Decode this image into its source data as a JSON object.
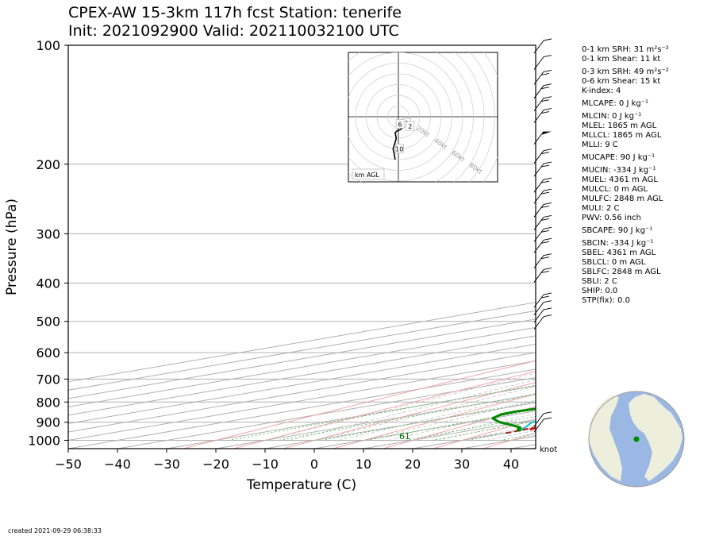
{
  "header": {
    "line1": "CPEX-AW 15-3km  117h fcst  Station: tenerife",
    "line2": "Init: 2021092900  Valid: 202110032100 UTC"
  },
  "stats": [
    "0-1 km SRH: 31 m²s⁻²",
    "0-1 km Shear: 11 kt",
    "0-3 km SRH: 49 m²s⁻²",
    "0-6 km Shear: 15 kt",
    "K-index: 4",
    "MLCAPE: 0 J kg⁻¹",
    "MLCIN: 0 J kg⁻¹",
    "MLEL: 1865 m AGL",
    "MLLCL: 1865 m AGL",
    "MLLI: 9 C",
    "MUCAPE: 90 J kg⁻¹",
    "MUCIN: -334 J kg⁻¹",
    "MUEL: 4361 m AGL",
    "MULCL: 0 m AGL",
    "MULFC: 2848 m AGL",
    "MULI: 2 C",
    "PWV: 0.56 inch",
    "SBCAPE: 90 J kg⁻¹",
    "SBCIN: -334 J kg⁻¹",
    "SBEL: 4361 m AGL",
    "SBLCL: 0 m AGL",
    "SBLFC: 2848 m AGL",
    "SBLI: 2 C",
    "SHIP: 0.0",
    "STP(fix): 0.0"
  ],
  "footer": "created 2021-09-29 06:38:33",
  "colors": {
    "temperature": "#ee1111",
    "dewpoint": "#008800",
    "wetbulb": "#17becf",
    "parcel": "#a52a2a",
    "isotherm": "#b0b0b0",
    "dry_adiabat": "#f4a6a6",
    "moist_adiabat": "#c0c0c0",
    "mixing_ratio": "#66bb66",
    "ocean": "#9ab8e3",
    "land": "#eeeedc"
  },
  "chart_data": {
    "type": "line",
    "chart_kind": "skew-T log-p diagram",
    "xlabel": "Temperature (C)",
    "ylabel": "Pressure (hPa)",
    "xlim": [
      -50,
      45
    ],
    "ylim": [
      1050,
      100
    ],
    "y_scale": "log",
    "xticks": [
      -50,
      -40,
      -30,
      -20,
      -10,
      0,
      10,
      20,
      30,
      40
    ],
    "yticks": [
      100,
      200,
      300,
      400,
      500,
      600,
      700,
      800,
      900,
      1000
    ],
    "surface_label": "61",
    "wind_unit_label": "knot",
    "series": [
      {
        "key": "temperature",
        "pressure": [
          938,
          928,
          900,
          880,
          860,
          840,
          820,
          800,
          780,
          760,
          740,
          720,
          700,
          680,
          660,
          640,
          620,
          600,
          580,
          560,
          540,
          520,
          500,
          480,
          460,
          440,
          420,
          400,
          380,
          360,
          340,
          320,
          300,
          280,
          260,
          240,
          220,
          200,
          180,
          160,
          140,
          120,
          100
        ],
        "values": [
          20.7,
          20.3,
          21.5,
          22.6,
          23.0,
          22.5,
          21.6,
          20.2,
          18.4,
          16.5,
          14.6,
          12.8,
          11.1,
          9.4,
          7.8,
          6.5,
          5.5,
          5.0,
          5.2,
          4.8,
          4.8,
          5.0,
          4.2,
          2.4,
          0.6,
          -1.4,
          -3.4,
          -5.6,
          -7.9,
          -10.5,
          -13.0,
          -16.0,
          -19.5,
          -23.0,
          -26.5,
          -30.5,
          -34.5,
          -39.0,
          -44.0,
          -49.0,
          -54.5,
          -60.0,
          -67.0
        ]
      },
      {
        "key": "wetbulb",
        "pressure": [
          938,
          928,
          900,
          880,
          860,
          840,
          820,
          800,
          780,
          760,
          740,
          720,
          700,
          680,
          660,
          640,
          620,
          600,
          580,
          560,
          540,
          520,
          500,
          480,
          460,
          440,
          420,
          400,
          380,
          360,
          340,
          320,
          300,
          280,
          260,
          240,
          220,
          200,
          180,
          160,
          140,
          120,
          100
        ],
        "values": [
          19.0,
          17.5,
          12.6,
          10.6,
          9.0,
          9.4,
          9.2,
          8.8,
          7.8,
          6.5,
          5.2,
          4.2,
          3.2,
          1.8,
          0.4,
          -1.8,
          -4.0,
          -6.5,
          -8.5,
          -9.7,
          -9.5,
          -9.8,
          -10.8,
          -12.5,
          -14.5,
          -16.7,
          -19.0,
          -21.2,
          -23.5,
          -25.5,
          -27.4,
          -29.5,
          -32.0,
          -35.0,
          -38.0,
          -41.5,
          -45.0,
          -49.0,
          -53.5,
          -58.0,
          -63.0,
          -68.5,
          -74.0
        ]
      },
      {
        "key": "dewpoint",
        "pressure": [
          938,
          928,
          910,
          900,
          880,
          860,
          845,
          830,
          815,
          800,
          780,
          760,
          740,
          720,
          700,
          680,
          660,
          640,
          620,
          600,
          580,
          560,
          540,
          520,
          500,
          480,
          460,
          440,
          420,
          400,
          380,
          360,
          340,
          320,
          300,
          280,
          260,
          240,
          220,
          200,
          180,
          160,
          140,
          120,
          100
        ],
        "values": [
          18.5,
          16.5,
          10.0,
          6.0,
          0.0,
          -3.0,
          -3.5,
          -2.5,
          -2.5,
          -2.5,
          -3.0,
          -3.0,
          -2.0,
          -1.0,
          0.0,
          0.5,
          0.5,
          -0.5,
          -2.0,
          -4.0,
          -7.0,
          -10.5,
          -16.0,
          -29.0,
          -52.0,
          -46.0,
          -41.0,
          -35.0,
          -30.0,
          -27.0,
          -25.0,
          -26.0,
          -23.0,
          -21.0,
          -20.5,
          -24.5,
          -27.0,
          -28.0,
          -30.0,
          -32.0,
          -36.0,
          -40.0,
          -45.0,
          -52.0,
          -60.0
        ]
      },
      {
        "key": "parcel",
        "pressure": [
          960,
          938,
          900,
          850,
          800,
          750,
          700,
          650,
          600,
          550,
          500,
          450,
          400,
          350,
          300,
          250,
          200,
          150,
          120,
          100
        ],
        "values": [
          20.5,
          19.8,
          18.6,
          16.8,
          14.8,
          12.6,
          10.1,
          7.3,
          4.0,
          0.0,
          -5.0,
          -11.0,
          -18.0,
          -26.5,
          -36.5,
          -49.0,
          -62.0,
          -79.0,
          -91.0,
          -100.0
        ]
      }
    ],
    "wind_barbs_knots": [
      {
        "p": 910,
        "spd": 12
      },
      {
        "p": 880,
        "spd": 10
      },
      {
        "p": 500,
        "spd": 10
      },
      {
        "p": 480,
        "spd": 10
      },
      {
        "p": 460,
        "spd": 10
      },
      {
        "p": 440,
        "spd": 15
      },
      {
        "p": 380,
        "spd": 15
      },
      {
        "p": 350,
        "spd": 15
      },
      {
        "p": 320,
        "spd": 20
      },
      {
        "p": 300,
        "spd": 20
      },
      {
        "p": 280,
        "spd": 20
      },
      {
        "p": 260,
        "spd": 20
      },
      {
        "p": 240,
        "spd": 20
      },
      {
        "p": 225,
        "spd": 20
      },
      {
        "p": 205,
        "spd": 20
      },
      {
        "p": 190,
        "spd": 20
      },
      {
        "p": 170,
        "spd": 50
      },
      {
        "p": 150,
        "spd": 20
      },
      {
        "p": 140,
        "spd": 20
      },
      {
        "p": 130,
        "spd": 20
      },
      {
        "p": 120,
        "spd": 15
      },
      {
        "p": 110,
        "spd": 10
      },
      {
        "p": 100,
        "spd": 10
      }
    ],
    "hodograph": {
      "ring_labels": [
        "20kt",
        "40kt",
        "60kt",
        "80kt"
      ],
      "height_labels": [
        "1",
        "2",
        "6",
        "10"
      ],
      "legend": "km AGL",
      "u": [
        -2,
        2,
        6,
        5,
        2,
        -1,
        -3,
        -2,
        -3,
        -4,
        -5,
        -4,
        -3
      ],
      "v": [
        -5,
        -6,
        -7,
        -9,
        -12,
        -13,
        -15,
        -20,
        -24,
        -27,
        -30,
        -34,
        -40
      ]
    }
  }
}
